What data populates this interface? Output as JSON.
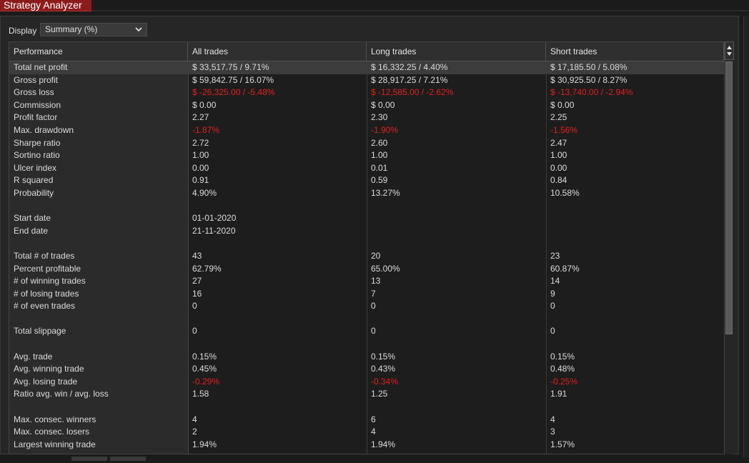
{
  "window": {
    "title": "Strategy Analyzer"
  },
  "display": {
    "label": "Display",
    "selected": "Summary (%)"
  },
  "table": {
    "columns": [
      "Performance",
      "All trades",
      "Long trades",
      "Short trades"
    ],
    "rows": [
      {
        "label": "Total net profit",
        "all": "$ 33,517.75 / 9.71%",
        "long": "$ 16,332.25 / 4.40%",
        "short": "$ 17,185.50 / 5.08%",
        "selected": true
      },
      {
        "label": "Gross profit",
        "all": "$ 59,842.75 / 16.07%",
        "long": "$ 28,917.25 / 7.21%",
        "short": "$ 30,925.50 / 8.27%"
      },
      {
        "label": "Gross loss",
        "all": "$ -26,325.00 / -5.48%",
        "long": "$ -12,585.00 / -2.62%",
        "short": "$ -13,740.00 / -2.94%",
        "negative": true
      },
      {
        "label": "Commission",
        "all": "$ 0.00",
        "long": "$ 0.00",
        "short": "$ 0.00"
      },
      {
        "label": "Profit factor",
        "all": "2.27",
        "long": "2.30",
        "short": "2.25"
      },
      {
        "label": "Max. drawdown",
        "all": "-1.87%",
        "long": "-1.90%",
        "short": "-1.56%",
        "negative": true
      },
      {
        "label": "Sharpe ratio",
        "all": "2.72",
        "long": "2.60",
        "short": "2.47"
      },
      {
        "label": "Sortino ratio",
        "all": "1.00",
        "long": "1.00",
        "short": "1.00"
      },
      {
        "label": "Ulcer index",
        "all": "0.00",
        "long": "0.01",
        "short": "0.00"
      },
      {
        "label": "R squared",
        "all": "0.91",
        "long": "0.59",
        "short": "0.84"
      },
      {
        "label": "Probability",
        "all": "4.90%",
        "long": "13.27%",
        "short": "10.58%"
      },
      {
        "spacer": true
      },
      {
        "label": "Start date",
        "all": "01-01-2020",
        "long": "",
        "short": ""
      },
      {
        "label": "End date",
        "all": "21-11-2020",
        "long": "",
        "short": ""
      },
      {
        "spacer": true
      },
      {
        "label": "Total # of trades",
        "all": "43",
        "long": "20",
        "short": "23"
      },
      {
        "label": "Percent profitable",
        "all": "62.79%",
        "long": "65.00%",
        "short": "60.87%"
      },
      {
        "label": "# of winning trades",
        "all": "27",
        "long": "13",
        "short": "14"
      },
      {
        "label": "# of losing trades",
        "all": "16",
        "long": "7",
        "short": "9"
      },
      {
        "label": "# of even trades",
        "all": "0",
        "long": "0",
        "short": "0"
      },
      {
        "spacer": true
      },
      {
        "label": "Total slippage",
        "all": "0",
        "long": "0",
        "short": "0"
      },
      {
        "spacer": true
      },
      {
        "label": "Avg. trade",
        "all": "0.15%",
        "long": "0.15%",
        "short": "0.15%"
      },
      {
        "label": "Avg. winning trade",
        "all": "0.45%",
        "long": "0.43%",
        "short": "0.48%"
      },
      {
        "label": "Avg. losing trade",
        "all": "-0.29%",
        "long": "-0.34%",
        "short": "-0.25%",
        "negative": true
      },
      {
        "label": "Ratio avg. win / avg. loss",
        "all": "1.58",
        "long": "1.25",
        "short": "1.91"
      },
      {
        "spacer": true
      },
      {
        "label": "Max. consec. winners",
        "all": "4",
        "long": "6",
        "short": "4"
      },
      {
        "label": "Max. consec. losers",
        "all": "2",
        "long": "4",
        "short": "3"
      },
      {
        "label": "Largest winning trade",
        "all": "1.94%",
        "long": "1.94%",
        "short": "1.57%"
      }
    ]
  },
  "icons": {
    "dropdown": "chevron-down-icon",
    "scroll": "scroll-up-down-icon"
  },
  "colors": {
    "title_tab": "#8c1c1c",
    "negative": "#e02020",
    "background": "#1b1b1b"
  }
}
